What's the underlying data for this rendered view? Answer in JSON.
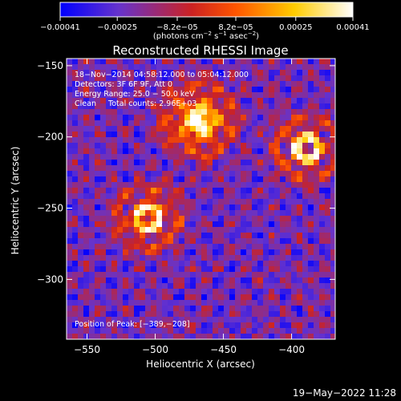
{
  "plot": {
    "title": "Reconstructed RHESSI Image",
    "xlabel": "Heliocentric X (arcsec)",
    "ylabel": "Heliocentric Y (arcsec)",
    "x_ticks": [
      "−550",
      "−500",
      "−450",
      "−400"
    ],
    "x_tick_values": [
      -550,
      -500,
      -450,
      -400
    ],
    "y_ticks": [
      "−150",
      "−200",
      "−250",
      "−300"
    ],
    "y_tick_values": [
      -150,
      -200,
      -250,
      -300
    ],
    "xlim": [
      -565,
      -368
    ],
    "ylim": [
      -342,
      -145
    ]
  },
  "colorbar": {
    "ticks": [
      "−0.00041",
      "−0.00025",
      "−8.2e−05",
      "8.2e−05",
      "0.00025",
      "0.00041"
    ],
    "tick_values": [
      -0.00041,
      -0.00025,
      -8.2e-05,
      8.2e-05,
      0.00025,
      0.00041
    ],
    "range": [
      -0.00041,
      0.00041
    ],
    "units_label": "(photons cm",
    "units_exp1": "−2",
    "units_mid1": " s",
    "units_exp2": "−1",
    "units_mid2": " asec",
    "units_exp3": "−2",
    "units_end": ")",
    "colors": [
      "#0000ff",
      "#6633cc",
      "#cc2222",
      "#ff5500",
      "#ffcc00",
      "#ffffff"
    ]
  },
  "info": {
    "line1": "18−Nov−2014 04:58:12.000 to 05:04:12.000",
    "line2": "Detectors: 3F 6F 9F, Att 0",
    "line3": "Energy Range: 25.0 − 50.0 keV",
    "line4": "Clean     Total counts: 2.96E+03",
    "peak": "Position of Peak: [−389,−208]"
  },
  "footer": {
    "date": "19−May−2022 11:28"
  },
  "sources": [
    {
      "x": -505,
      "y": -257,
      "type": "ring"
    },
    {
      "x": -468,
      "y": -188,
      "type": "blob"
    },
    {
      "x": -389,
      "y": -208,
      "type": "ring"
    }
  ]
}
